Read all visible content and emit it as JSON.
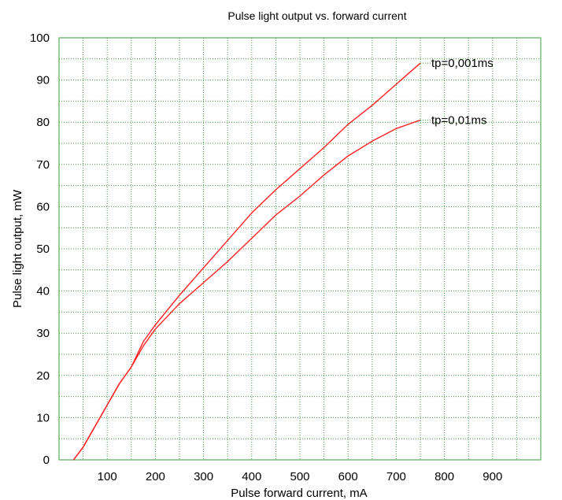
{
  "chart_data": {
    "type": "line",
    "title": "Pulse light output vs. forward current",
    "xlabel": "Pulse forward current, mA",
    "ylabel": "Pulse light output, mW",
    "xlim": [
      0,
      1000
    ],
    "ylim": [
      0,
      100
    ],
    "x_ticks": [
      "100",
      "200",
      "300",
      "400",
      "500",
      "600",
      "700",
      "800",
      "900"
    ],
    "y_ticks": [
      "0",
      "10",
      "20",
      "30",
      "40",
      "50",
      "60",
      "70",
      "80",
      "90",
      "100"
    ],
    "grid": true,
    "line_color": "#ff2020",
    "grid_color": "#3a9a3a",
    "series": [
      {
        "name": "tp=0,001ms",
        "x": [
          30,
          50,
          75,
          100,
          125,
          150,
          175,
          200,
          250,
          300,
          350,
          400,
          450,
          500,
          550,
          600,
          650,
          700,
          750
        ],
        "y": [
          0,
          3,
          8,
          13,
          18,
          22,
          28,
          32,
          39,
          45.5,
          52,
          58.5,
          64,
          69,
          74,
          79.5,
          84,
          89,
          94
        ]
      },
      {
        "name": "tp=0,01ms",
        "x": [
          30,
          50,
          75,
          100,
          125,
          150,
          175,
          200,
          250,
          300,
          350,
          400,
          450,
          500,
          550,
          600,
          650,
          700,
          750
        ],
        "y": [
          0,
          3,
          8,
          13,
          18,
          22,
          27,
          31,
          37,
          42,
          47,
          52.5,
          58,
          62.5,
          67.5,
          72,
          75.5,
          78.5,
          80.5
        ]
      }
    ]
  }
}
